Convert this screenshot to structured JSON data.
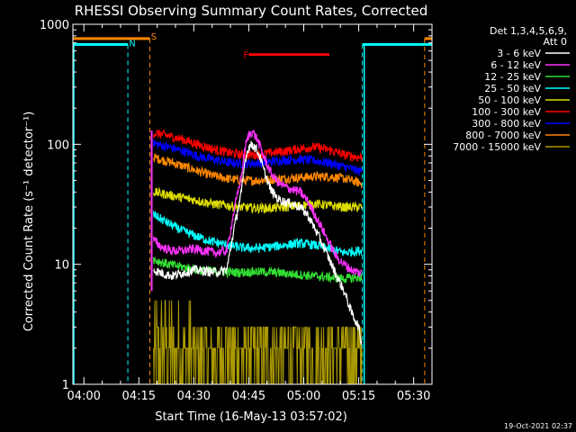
{
  "chart_data": {
    "type": "line",
    "title": "RHESSI Observing Summary Count Rates, Corrected",
    "xlabel": "Start Time (16-May-13 03:57:02)",
    "ylabel": "Corrected Count Rate (s⁻¹ detector⁻¹)",
    "x_ticks": [
      "04:00",
      "04:15",
      "04:30",
      "04:45",
      "05:00",
      "05:15",
      "05:30"
    ],
    "x_tick_minutes": [
      240,
      255,
      270,
      285,
      300,
      315,
      330
    ],
    "xlim_minutes": [
      237.0,
      335.0
    ],
    "y_scale": "log",
    "ylim": [
      1,
      1000
    ],
    "y_ticks": [
      "1",
      "10",
      "100",
      "1000"
    ],
    "y_tick_values": [
      1,
      10,
      100,
      1000
    ],
    "legend_header": [
      "Det 1,3,4,5,6,9,",
      "Att 0"
    ],
    "legend_position": "right",
    "timestamp": "19-Oct-2021 02:37",
    "data_window_minutes": [
      258.5,
      316.5
    ],
    "series": [
      {
        "name": "3 - 6 keV",
        "color": "#ffffff",
        "x": [
          259,
          261,
          264,
          267,
          270,
          273,
          276,
          279,
          281,
          283,
          284,
          285,
          286,
          287,
          288,
          289,
          291,
          293,
          295,
          297,
          299,
          301,
          303,
          305,
          307,
          309,
          311,
          313,
          315,
          316
        ],
        "values": [
          9,
          8.5,
          8,
          8.5,
          9,
          8.8,
          8.6,
          9,
          20,
          40,
          75,
          95,
          100,
          92,
          80,
          62,
          42,
          35,
          33,
          32,
          30,
          26,
          20,
          15,
          11,
          8,
          6,
          4,
          3,
          2
        ]
      },
      {
        "name": "6 - 12 keV",
        "color": "#ff33ff",
        "x": [
          259,
          261,
          264,
          267,
          270,
          273,
          276,
          279,
          281,
          283,
          284,
          285,
          286,
          287,
          288,
          289,
          291,
          293,
          295,
          297,
          299,
          301,
          303,
          305,
          307,
          309,
          311,
          313,
          315,
          316
        ],
        "values": [
          16,
          14,
          13,
          13,
          13.5,
          13,
          12.5,
          13,
          28,
          55,
          95,
          120,
          128,
          115,
          98,
          80,
          58,
          48,
          44,
          42,
          40,
          34,
          26,
          20,
          15,
          11.5,
          10,
          9,
          8.5,
          8.5
        ]
      },
      {
        "name": "12 - 25 keV",
        "color": "#33dd33",
        "x": [
          259,
          263,
          267,
          271,
          275,
          279,
          283,
          287,
          291,
          295,
          299,
          303,
          307,
          311,
          315,
          316
        ],
        "values": [
          11,
          10,
          9.5,
          9,
          8.8,
          8.6,
          8.6,
          8.7,
          8.6,
          8.4,
          8.2,
          8,
          7.8,
          7.6,
          7.8,
          7.8
        ]
      },
      {
        "name": "25 - 50 keV",
        "color": "#00ffff",
        "x": [
          259,
          263,
          267,
          271,
          275,
          279,
          283,
          287,
          291,
          295,
          299,
          303,
          307,
          311,
          315,
          316
        ],
        "values": [
          26,
          22,
          19,
          17,
          15.5,
          14.5,
          13.8,
          13.6,
          14,
          14.5,
          15,
          14.5,
          13.5,
          12.5,
          13,
          13
        ]
      },
      {
        "name": "50 - 100 keV",
        "color": "#dddd00",
        "x": [
          259,
          263,
          267,
          271,
          275,
          279,
          283,
          287,
          291,
          295,
          299,
          303,
          307,
          311,
          315,
          316
        ],
        "values": [
          40,
          38,
          36,
          34,
          32,
          31,
          30,
          29.5,
          29.5,
          30,
          31,
          32,
          31,
          30,
          30,
          30
        ]
      },
      {
        "name": "100 - 300 keV",
        "color": "#ff0000",
        "x": [
          259,
          263,
          267,
          271,
          275,
          279,
          283,
          287,
          291,
          295,
          299,
          303,
          307,
          311,
          315,
          316
        ],
        "values": [
          125,
          118,
          110,
          100,
          92,
          86,
          82,
          82,
          85,
          88,
          92,
          95,
          90,
          82,
          78,
          78
        ]
      },
      {
        "name": "300 - 800 keV",
        "color": "#0000ff",
        "x": [
          259,
          263,
          267,
          271,
          275,
          279,
          283,
          287,
          291,
          295,
          299,
          303,
          307,
          311,
          315,
          316
        ],
        "values": [
          102,
          95,
          88,
          80,
          75,
          71,
          69,
          70,
          72,
          74,
          75,
          73,
          70,
          65,
          60,
          60
        ]
      },
      {
        "name": "800 - 7000 keV",
        "color": "#ff8800",
        "x": [
          259,
          263,
          267,
          271,
          275,
          279,
          283,
          287,
          291,
          295,
          299,
          303,
          307,
          311,
          315,
          316
        ],
        "values": [
          78,
          72,
          66,
          60,
          55,
          52,
          50,
          50,
          51,
          52,
          53,
          54,
          54,
          52,
          48,
          47
        ]
      },
      {
        "name": "7000 - 15000 keV",
        "color": "#aa9900",
        "x": [
          259,
          265,
          270,
          275,
          280,
          285,
          290,
          295,
          300,
          305,
          310,
          315,
          316
        ],
        "values": [
          2.5,
          2.2,
          1.8,
          1.6,
          1.5,
          1.5,
          1.6,
          1.6,
          1.5,
          1.5,
          1.6,
          1.6,
          1.6
        ],
        "noisy": true
      }
    ],
    "annotations": [
      {
        "label": "S",
        "color": "#ff8800",
        "x_minutes": 258.3,
        "y_value": 800
      },
      {
        "label": "N",
        "color": "#00ffff",
        "x_minutes": 252.3,
        "y_value": 700
      },
      {
        "label": "F",
        "color": "#ff0000",
        "x_minutes": 283.5,
        "y_value": 560
      }
    ],
    "bars": [
      {
        "color": "#ff8800",
        "x_start": 237,
        "x_end": 258,
        "y_value": 760,
        "dashed_end": true
      },
      {
        "color": "#00ffff",
        "x_start": 237,
        "x_end": 252,
        "y_value": 680,
        "dashed_end": true
      },
      {
        "color": "#ff0000",
        "x_start": 285,
        "x_end": 307,
        "y_value": 560,
        "dashed_end": false
      },
      {
        "color": "#00ffff",
        "x_start": 316,
        "x_end": 335,
        "y_value": 680,
        "dashed_start": true
      },
      {
        "color": "#ff8800",
        "x_start": 333,
        "x_end": 335,
        "y_value": 760,
        "dashed_start": true
      }
    ]
  }
}
